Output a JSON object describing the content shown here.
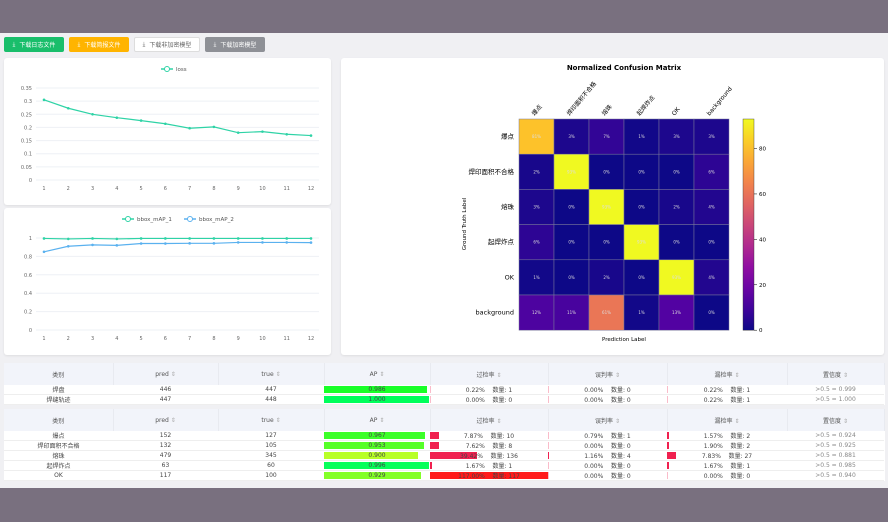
{
  "toolbar": {
    "buttons": [
      {
        "label": "下载日志文件",
        "bg": "#19be6b",
        "color": "#fff"
      },
      {
        "label": "下载简报文件",
        "bg": "#ffb400",
        "color": "#fff"
      },
      {
        "label": "下载非加密模型",
        "bg": "#fff",
        "color": "#666"
      },
      {
        "label": "下载加密模型",
        "bg": "#8e9096",
        "color": "#fff"
      }
    ],
    "icon": "download-icon"
  },
  "chart_data": [
    {
      "type": "line",
      "legend": [
        "loss"
      ],
      "x": [
        1,
        2,
        3,
        4,
        5,
        6,
        7,
        8,
        9,
        10,
        11,
        12
      ],
      "series": [
        {
          "name": "loss",
          "color": "#2ed3a6",
          "values": [
            0.305,
            0.273,
            0.25,
            0.237,
            0.226,
            0.214,
            0.197,
            0.202,
            0.18,
            0.184,
            0.174,
            0.169
          ]
        }
      ],
      "ylim": [
        0,
        0.35
      ],
      "yticks": [
        "0",
        "0.05",
        "0.1",
        "0.15",
        "0.2",
        "0.25",
        "0.3",
        "0.35"
      ],
      "legend_position": "top"
    },
    {
      "type": "line",
      "x": [
        1,
        2,
        3,
        4,
        5,
        6,
        7,
        8,
        9,
        10,
        11,
        12
      ],
      "series": [
        {
          "name": "bbox_mAP_1",
          "color": "#2ed3a6",
          "values": [
            0.995,
            0.99,
            0.995,
            0.99,
            0.995,
            0.995,
            0.995,
            0.995,
            0.995,
            0.995,
            0.995,
            0.995
          ]
        },
        {
          "name": "bbox_mAP_2",
          "color": "#5ab1ef",
          "values": [
            0.85,
            0.91,
            0.925,
            0.92,
            0.94,
            0.94,
            0.942,
            0.942,
            0.952,
            0.952,
            0.952,
            0.95
          ]
        }
      ],
      "ylim": [
        0,
        1
      ],
      "yticks": [
        "0",
        "0.2",
        "0.4",
        "0.6",
        "0.8",
        "1"
      ],
      "legend_position": "top"
    },
    {
      "type": "heatmap",
      "title": "Normalized Confusion Matrix",
      "xlabel": "Prediction Label",
      "ylabel": "Ground Truth Label",
      "labels": [
        "爆点",
        "焊印面积不合格",
        "熔珠",
        "起焊炸点",
        "OK",
        "background"
      ],
      "values": [
        [
          81,
          3,
          7,
          1,
          3,
          3
        ],
        [
          2,
          93,
          0,
          0,
          0,
          6
        ],
        [
          3,
          0,
          93,
          0,
          2,
          4
        ],
        [
          6,
          0,
          0,
          93,
          0,
          0
        ],
        [
          1,
          0,
          2,
          0,
          93,
          4
        ],
        [
          12,
          11,
          61,
          1,
          13,
          0
        ]
      ],
      "colorbar_ticks": [
        0,
        20,
        40,
        60,
        80
      ],
      "colormap": "plasma"
    }
  ],
  "tables": {
    "headers": [
      "类别",
      "pred",
      "true",
      "AP",
      "过检率",
      "误判率",
      "漏检率",
      "置信度"
    ],
    "groups": [
      [
        {
          "cls": "焊盘",
          "pred": "446",
          "true": "447",
          "ap": "0.986",
          "over": "0.22%",
          "over_n": "数量: 1",
          "mis": "0.00%",
          "mis_n": "数量: 0",
          "miss": "0.22%",
          "miss_n": "数量: 1",
          "conf": ">0.5 = 0.999"
        },
        {
          "cls": "焊缝轨迹",
          "pred": "447",
          "true": "448",
          "ap": "1.000",
          "over": "0.00%",
          "over_n": "数量: 0",
          "mis": "0.00%",
          "mis_n": "数量: 0",
          "miss": "0.22%",
          "miss_n": "数量: 1",
          "conf": ">0.5 = 1.000"
        }
      ],
      [
        {
          "cls": "爆点",
          "pred": "152",
          "true": "127",
          "ap": "0.967",
          "over": "7.87%",
          "over_n": "数量: 10",
          "mis": "0.79%",
          "mis_n": "数量: 1",
          "miss": "1.57%",
          "miss_n": "数量: 2",
          "conf": ">0.5 = 0.924"
        },
        {
          "cls": "焊印面积不合格",
          "pred": "132",
          "true": "105",
          "ap": "0.953",
          "over": "7.62%",
          "over_n": "数量: 8",
          "mis": "0.00%",
          "mis_n": "数量: 0",
          "miss": "1.90%",
          "miss_n": "数量: 2",
          "conf": ">0.5 = 0.925"
        },
        {
          "cls": "熔珠",
          "pred": "479",
          "true": "345",
          "ap": "0.900",
          "over": "39.42%",
          "over_n": "数量: 136",
          "mis": "1.16%",
          "mis_n": "数量: 4",
          "miss": "7.83%",
          "miss_n": "数量: 27",
          "conf": ">0.5 = 0.881"
        },
        {
          "cls": "起焊炸点",
          "pred": "63",
          "true": "60",
          "ap": "0.996",
          "over": "1.67%",
          "over_n": "数量: 1",
          "mis": "0.00%",
          "mis_n": "数量: 0",
          "miss": "1.67%",
          "miss_n": "数量: 1",
          "conf": ">0.5 = 0.985"
        },
        {
          "cls": "OK",
          "pred": "117",
          "true": "100",
          "ap": "0.929",
          "over": "117.00%",
          "over_n": "数量: 117",
          "mis": "0.00%",
          "mis_n": "数量: 0",
          "miss": "0.00%",
          "miss_n": "数量: 0",
          "conf": ">0.5 = 0.940"
        }
      ]
    ]
  }
}
